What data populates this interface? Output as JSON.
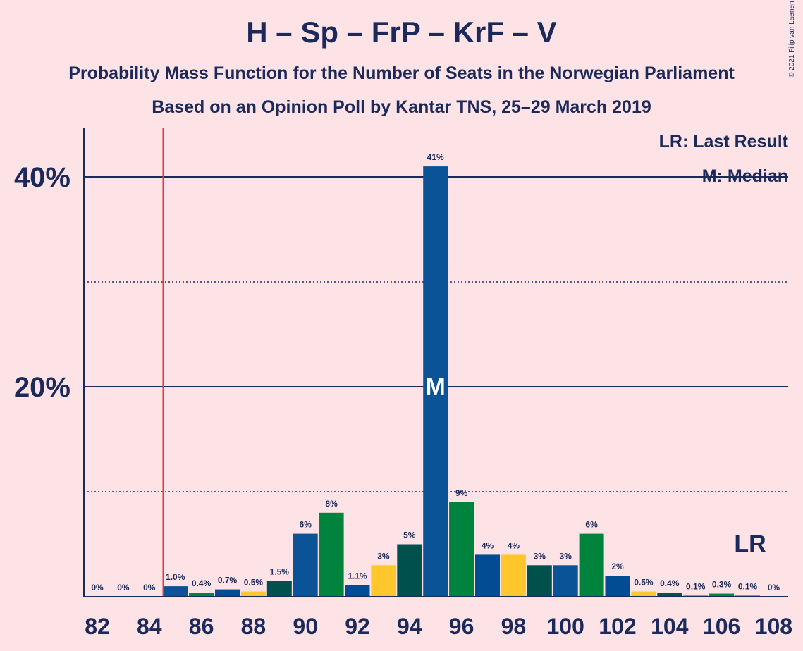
{
  "title": "H – Sp – FrP – KrF – V",
  "subtitle1": "Probability Mass Function for the Number of Seats in the Norwegian Parliament",
  "subtitle2": "Based on an Opinion Poll by Kantar TNS, 25–29 March 2019",
  "copyright": "© 2021 Filip van Laenen",
  "legend": {
    "lr": "LR: Last Result",
    "median": "M: Median"
  },
  "markers": {
    "lr_label": "LR",
    "median_label": "M"
  },
  "colors": {
    "background": "#FDE3E6",
    "text": "#1B2A5A",
    "lr_line": "#E53935",
    "H": "#0A5396",
    "Sp": "#00843D",
    "FrP": "#024C93",
    "KrF": "#FFC72C",
    "V": "#00514E"
  },
  "chart_data": {
    "type": "bar",
    "x": [
      82,
      83,
      84,
      85,
      86,
      87,
      88,
      89,
      90,
      91,
      92,
      93,
      94,
      95,
      96,
      97,
      98,
      99,
      100,
      101,
      102,
      103,
      104,
      105,
      106,
      107,
      108
    ],
    "values": [
      0,
      0,
      0,
      1.0,
      0.4,
      0.7,
      0.5,
      1.5,
      6,
      8,
      1.1,
      3,
      5,
      41,
      9,
      4,
      4,
      3,
      3,
      6,
      2,
      0.5,
      0.4,
      0.1,
      0.3,
      0.1,
      0
    ],
    "value_labels": [
      "0%",
      "0%",
      "0%",
      "1.0%",
      "0.4%",
      "0.7%",
      "0.5%",
      "1.5%",
      "6%",
      "8%",
      "1.1%",
      "3%",
      "5%",
      "41%",
      "9%",
      "4%",
      "4%",
      "3%",
      "3%",
      "6%",
      "2%",
      "0.5%",
      "0.4%",
      "0.1%",
      "0.3%",
      "0.1%",
      "0%"
    ],
    "bar_colors": [
      "V",
      "H",
      "Sp",
      "H",
      "Sp",
      "FrP",
      "KrF",
      "V",
      "H",
      "Sp",
      "FrP",
      "KrF",
      "V",
      "H",
      "Sp",
      "FrP",
      "KrF",
      "V",
      "H",
      "Sp",
      "FrP",
      "KrF",
      "V",
      "H",
      "Sp",
      "FrP",
      "KrF"
    ],
    "x_tick_labels": [
      "82",
      "84",
      "86",
      "88",
      "90",
      "92",
      "94",
      "96",
      "98",
      "100",
      "102",
      "104",
      "106",
      "108"
    ],
    "y_tick_labels": [
      "20%",
      "40%"
    ],
    "ylim": [
      0,
      45
    ],
    "grid": "solid at 20% and 40%, dotted at 10% and 30%",
    "last_result": 85,
    "median": 95,
    "legend_position": "top-right"
  }
}
